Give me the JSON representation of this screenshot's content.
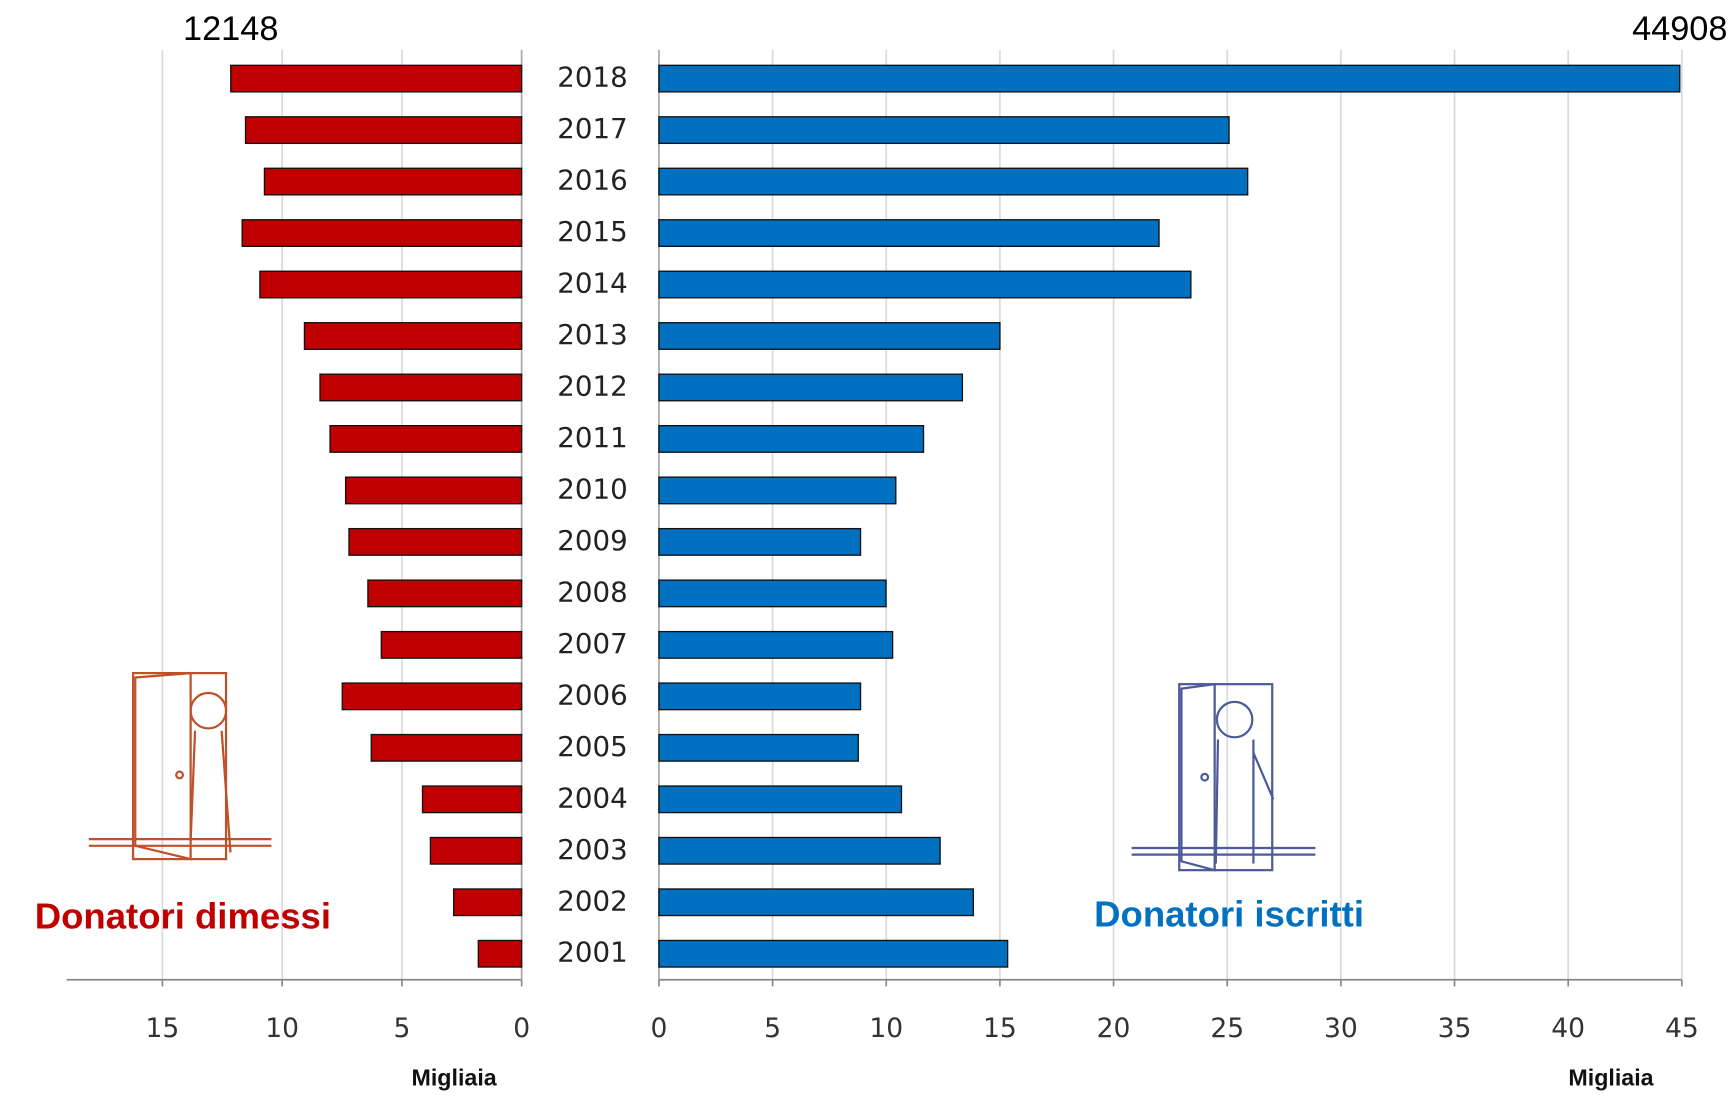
{
  "chart_data": [
    {
      "type": "bar",
      "orientation": "horizontal",
      "title": "Donatori dimessi",
      "x_label": "Migliaia",
      "color": "#c00000",
      "categories": [
        "2018",
        "2017",
        "2016",
        "2015",
        "2014",
        "2013",
        "2012",
        "2011",
        "2010",
        "2009",
        "2008",
        "2007",
        "2006",
        "2005",
        "2004",
        "2003",
        "2002",
        "2001"
      ],
      "values": [
        12.148,
        11.53,
        10.74,
        11.67,
        10.93,
        9.07,
        8.42,
        8.0,
        7.35,
        7.21,
        6.42,
        5.86,
        7.49,
        6.28,
        4.14,
        3.81,
        2.84,
        1.81
      ],
      "value_labels": [
        "12148",
        null,
        null,
        null,
        null,
        null,
        null,
        null,
        null,
        null,
        null,
        null,
        null,
        null,
        null,
        null,
        null,
        null
      ],
      "xlim": [
        19,
        0
      ],
      "xticks": [
        15,
        10,
        5,
        0
      ],
      "grid": true
    },
    {
      "type": "bar",
      "orientation": "horizontal",
      "title": "Donatori iscritti",
      "x_label": "Migliaia",
      "color": "#0070c0",
      "values": [
        44.908,
        25.08,
        25.9,
        22.0,
        23.4,
        15.0,
        13.35,
        11.64,
        10.42,
        8.87,
        9.99,
        10.28,
        8.87,
        8.77,
        10.67,
        12.37,
        13.83,
        15.34
      ],
      "value_labels": [
        "44908",
        null,
        null,
        null,
        null,
        null,
        null,
        null,
        null,
        null,
        null,
        null,
        null,
        null,
        null,
        null,
        null,
        null
      ],
      "xlim": [
        0,
        45
      ],
      "xticks": [
        0,
        5,
        10,
        15,
        20,
        25,
        30,
        35,
        40,
        45
      ],
      "grid": true
    }
  ]
}
